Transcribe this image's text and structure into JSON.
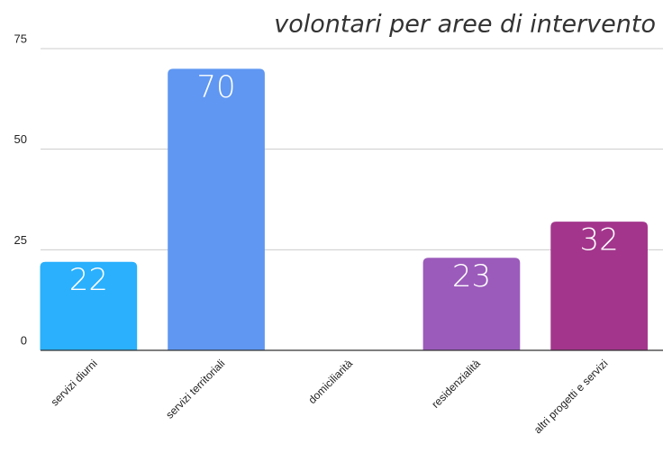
{
  "chart_data": {
    "type": "bar",
    "title": "volontari per aree di intervento",
    "categories": [
      "servizi diurni",
      "servizi territoriali",
      "domiciliarità",
      "residenzialità",
      "altri progetti e servizi"
    ],
    "values": [
      22,
      70,
      0,
      23,
      32
    ],
    "value_labels": [
      "22",
      "70",
      null,
      "23",
      "32"
    ],
    "colors": [
      "#2ab0fd",
      "#5f97f2",
      "#7f6fd6",
      "#9b5bbb",
      "#a3368c"
    ],
    "ylim": [
      0,
      75
    ],
    "yticks": [
      0,
      25,
      50,
      75
    ],
    "grid": true
  }
}
